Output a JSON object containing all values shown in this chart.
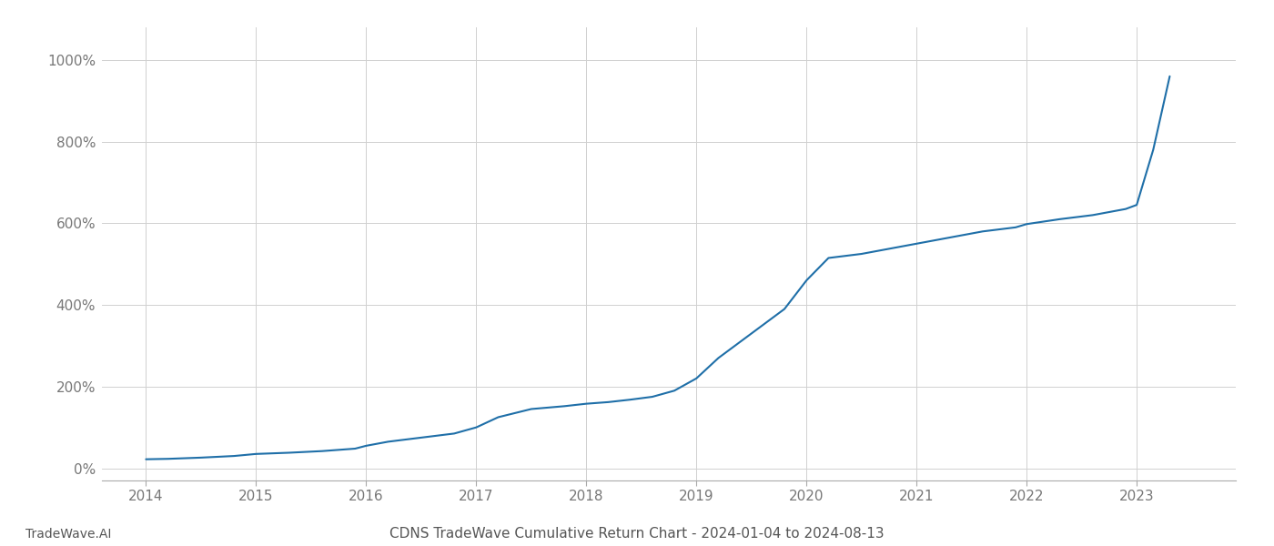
{
  "title": "CDNS TradeWave Cumulative Return Chart - 2024-01-04 to 2024-08-13",
  "watermark": "TradeWave.AI",
  "line_color": "#1f6fa8",
  "background_color": "#ffffff",
  "grid_color": "#d0d0d0",
  "years": [
    2014.0,
    2014.2,
    2014.5,
    2014.8,
    2015.0,
    2015.3,
    2015.6,
    2015.9,
    2016.0,
    2016.2,
    2016.5,
    2016.8,
    2017.0,
    2017.2,
    2017.5,
    2017.8,
    2018.0,
    2018.1,
    2018.2,
    2018.4,
    2018.6,
    2018.8,
    2019.0,
    2019.2,
    2019.5,
    2019.8,
    2020.0,
    2020.2,
    2020.5,
    2020.7,
    2021.0,
    2021.3,
    2021.6,
    2021.9,
    2022.0,
    2022.3,
    2022.6,
    2022.9,
    2023.0,
    2023.15,
    2023.3
  ],
  "values": [
    0.22,
    0.23,
    0.26,
    0.3,
    0.35,
    0.38,
    0.42,
    0.48,
    0.55,
    0.65,
    0.75,
    0.85,
    1.0,
    1.25,
    1.45,
    1.52,
    1.58,
    1.6,
    1.62,
    1.68,
    1.75,
    1.9,
    2.2,
    2.7,
    3.3,
    3.9,
    4.6,
    5.15,
    5.25,
    5.35,
    5.5,
    5.65,
    5.8,
    5.9,
    5.98,
    6.1,
    6.2,
    6.35,
    6.45,
    7.8,
    9.6
  ],
  "xlim": [
    2013.6,
    2023.9
  ],
  "ylim": [
    -0.3,
    10.8
  ],
  "yticks": [
    0,
    2,
    4,
    6,
    8,
    10
  ],
  "ytick_labels": [
    "0%",
    "200%",
    "400%",
    "600%",
    "800%",
    "1000%"
  ],
  "xtick_labels": [
    "2014",
    "2015",
    "2016",
    "2017",
    "2018",
    "2019",
    "2020",
    "2021",
    "2022",
    "2023"
  ],
  "xtick_positions": [
    2014,
    2015,
    2016,
    2017,
    2018,
    2019,
    2020,
    2021,
    2022,
    2023
  ],
  "title_fontsize": 11,
  "watermark_fontsize": 10,
  "tick_label_color": "#777777",
  "axis_label_color": "#555555",
  "spine_color": "#aaaaaa"
}
